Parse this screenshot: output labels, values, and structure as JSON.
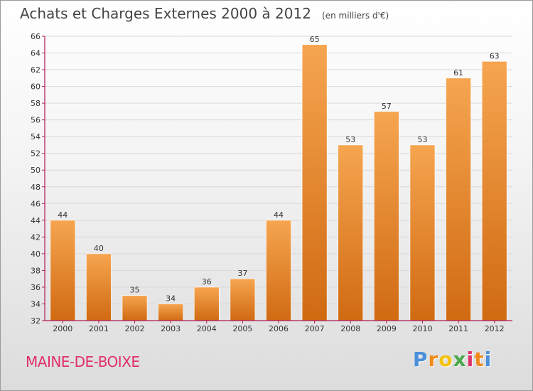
{
  "header": {
    "title": "Achats et Charges Externes 2000 à 2012",
    "unit": "(en milliers d'€)"
  },
  "footer": {
    "commune": "MAINE-DE-BOIXE",
    "logo_letters": [
      "P",
      "r",
      "o",
      "x",
      "i",
      "t",
      "i"
    ],
    "logo_colors": [
      "#4a8fd8",
      "#f08a1c",
      "#f4c20d",
      "#4aa84a",
      "#e0306a",
      "#f08a1c",
      "#4a8fd8"
    ]
  },
  "colors": {
    "bar_light": "#f6a550",
    "bar_dark": "#d06a12",
    "axis": "#b0195a",
    "title": "#444444",
    "commune": "#e0306a"
  },
  "chart_data": {
    "type": "bar",
    "title": "Achats et Charges Externes 2000 à 2012",
    "subtitle": "(en milliers d'€)",
    "xlabel": "",
    "ylabel": "",
    "categories": [
      "2000",
      "2001",
      "2002",
      "2003",
      "2004",
      "2005",
      "2006",
      "2007",
      "2008",
      "2009",
      "2010",
      "2011",
      "2012"
    ],
    "values": [
      44,
      40,
      35,
      34,
      36,
      37,
      44,
      65,
      53,
      57,
      53,
      61,
      63
    ],
    "ylim": [
      32,
      66
    ],
    "yticks": [
      32,
      34,
      36,
      38,
      40,
      42,
      44,
      46,
      48,
      50,
      52,
      54,
      56,
      58,
      60,
      62,
      64,
      66
    ],
    "grid": true,
    "legend": "none",
    "data_labels": true
  }
}
